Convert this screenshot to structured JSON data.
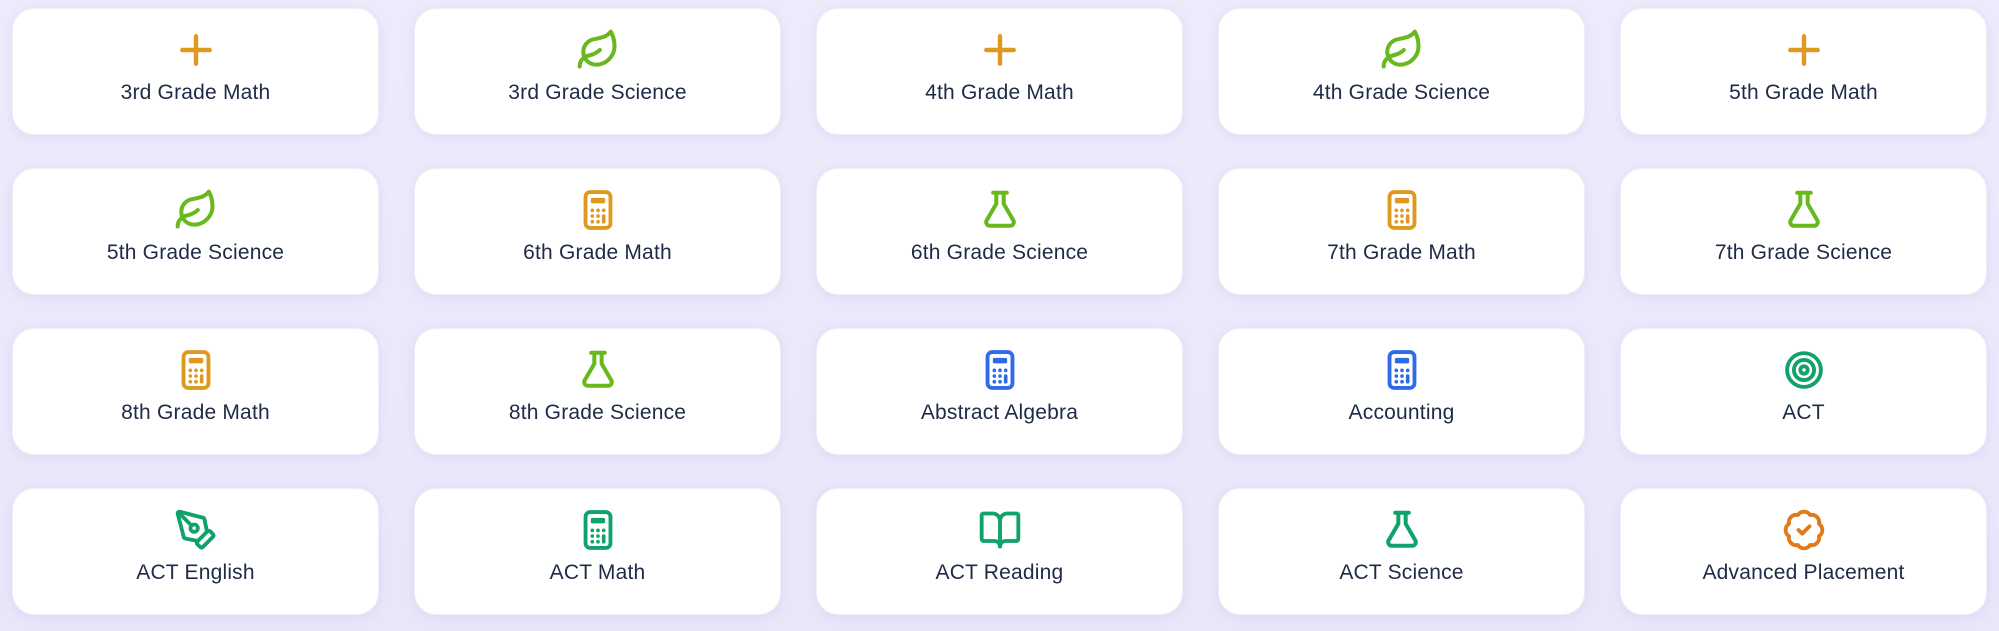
{
  "page": {
    "background_color": "#E9E7FA",
    "card_background_color": "#FFFFFF",
    "text_color": "#1E2A47"
  },
  "colors": {
    "amber": "#DE9A1F",
    "green": "#68B81E",
    "blue": "#2F6BE8",
    "emerald": "#0FA26A",
    "orange": "#E27A1D"
  },
  "cards": [
    {
      "label": "3rd Grade Math",
      "icon": "plus-icon",
      "color": "amber"
    },
    {
      "label": "3rd Grade Science",
      "icon": "leaf-icon",
      "color": "green"
    },
    {
      "label": "4th Grade Math",
      "icon": "plus-icon",
      "color": "amber"
    },
    {
      "label": "4th Grade Science",
      "icon": "leaf-icon",
      "color": "green"
    },
    {
      "label": "5th Grade Math",
      "icon": "plus-icon",
      "color": "amber"
    },
    {
      "label": "5th Grade Science",
      "icon": "leaf-icon",
      "color": "green"
    },
    {
      "label": "6th Grade Math",
      "icon": "calculator-icon",
      "color": "amber"
    },
    {
      "label": "6th Grade Science",
      "icon": "flask-icon",
      "color": "green"
    },
    {
      "label": "7th Grade Math",
      "icon": "calculator-icon",
      "color": "amber"
    },
    {
      "label": "7th Grade Science",
      "icon": "flask-icon",
      "color": "green"
    },
    {
      "label": "8th Grade Math",
      "icon": "calculator-icon",
      "color": "amber"
    },
    {
      "label": "8th Grade Science",
      "icon": "flask-icon",
      "color": "green"
    },
    {
      "label": "Abstract Algebra",
      "icon": "calculator-icon",
      "color": "blue"
    },
    {
      "label": "Accounting",
      "icon": "calculator-icon",
      "color": "blue"
    },
    {
      "label": "ACT",
      "icon": "target-icon",
      "color": "emerald"
    },
    {
      "label": "ACT English",
      "icon": "pen-tool-icon",
      "color": "emerald"
    },
    {
      "label": "ACT Math",
      "icon": "calculator-icon",
      "color": "emerald"
    },
    {
      "label": "ACT Reading",
      "icon": "book-open-icon",
      "color": "emerald"
    },
    {
      "label": "ACT Science",
      "icon": "flask-icon",
      "color": "emerald"
    },
    {
      "label": "Advanced Placement",
      "icon": "badge-check-icon",
      "color": "orange"
    }
  ]
}
